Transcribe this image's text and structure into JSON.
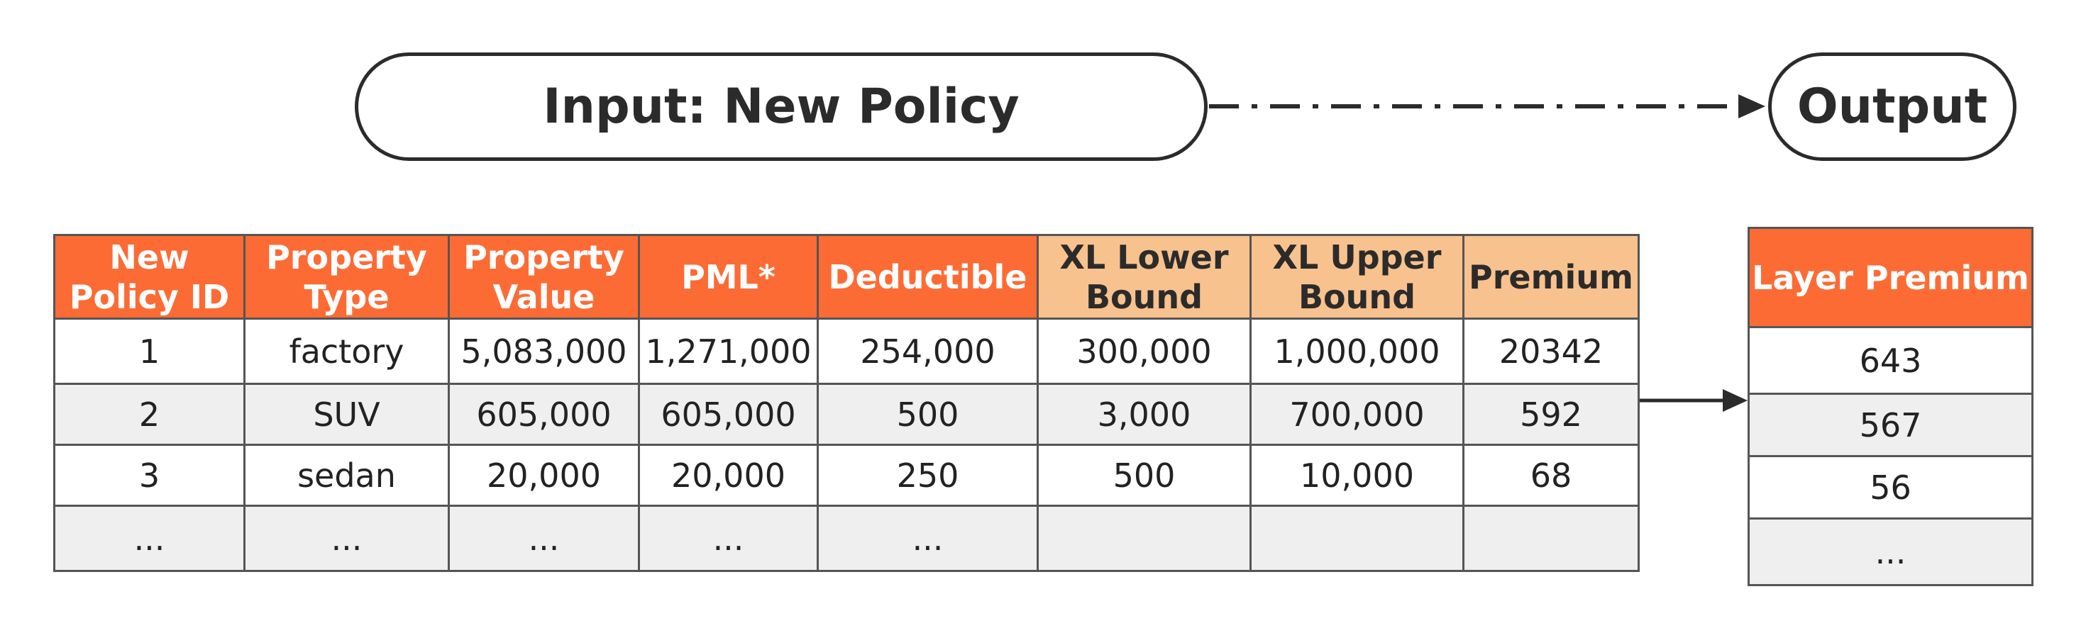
{
  "input_label": "Input: New Policy",
  "output_label": "Output",
  "input_table": {
    "headers": [
      {
        "label": "New Policy ID",
        "style": "orange"
      },
      {
        "label": "Property Type",
        "style": "orange"
      },
      {
        "label": "Property Value",
        "style": "orange"
      },
      {
        "label": "PML*",
        "style": "orange"
      },
      {
        "label": "Deductible",
        "style": "orange"
      },
      {
        "label": "XL Lower Bound",
        "style": "peach"
      },
      {
        "label": "XL Upper Bound",
        "style": "peach"
      },
      {
        "label": "Premium",
        "style": "peach"
      }
    ],
    "rows": [
      [
        "1",
        "factory",
        "5,083,000",
        "1,271,000",
        "254,000",
        "300,000",
        "1,000,000",
        "20342"
      ],
      [
        "2",
        "SUV",
        "605,000",
        "605,000",
        "500",
        "3,000",
        "700,000",
        "592"
      ],
      [
        "3",
        "sedan",
        "20,000",
        "20,000",
        "250",
        "500",
        "10,000",
        "68"
      ],
      [
        "...",
        "...",
        "...",
        "...",
        "...",
        "",
        "",
        ""
      ]
    ]
  },
  "output_table": {
    "header": "Layer Premium",
    "rows": [
      "643",
      "567",
      "56",
      "..."
    ]
  },
  "colors": {
    "header_orange": "#fd6b35",
    "header_peach": "#f8c28e",
    "row_grey": "#efefef",
    "line": "#2b2b2b"
  }
}
